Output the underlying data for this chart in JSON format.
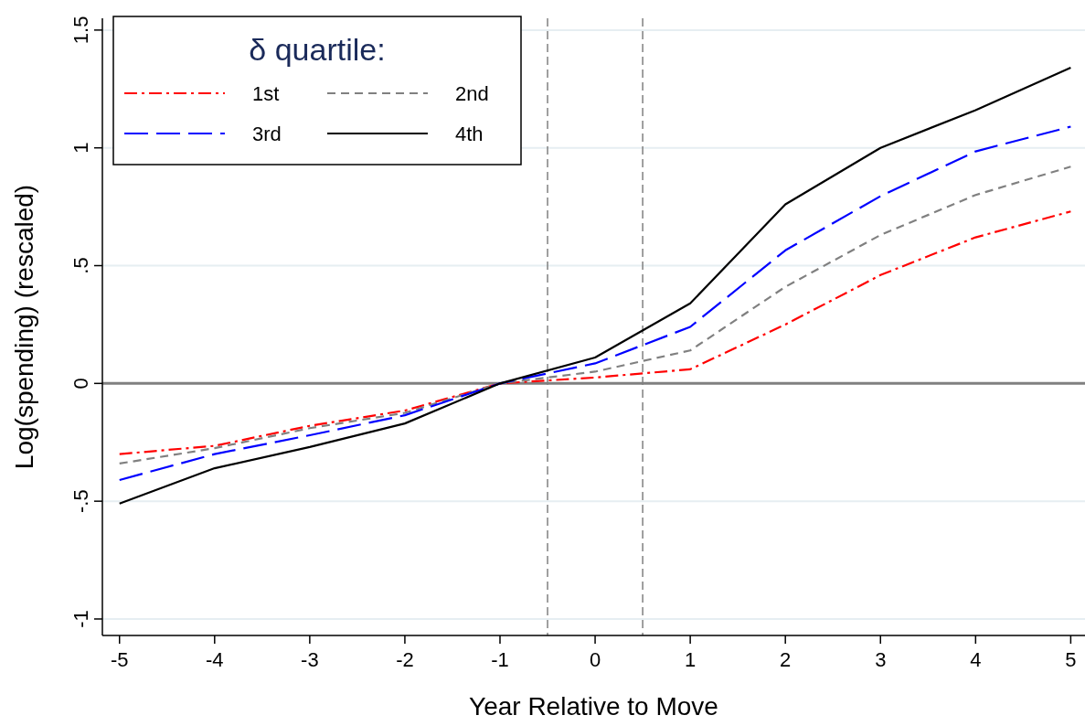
{
  "chart_data": {
    "type": "line",
    "xlabel": "Year Relative to Move",
    "ylabel": "Log(spending) (rescaled)",
    "legend_title": "δ quartile:",
    "x": [
      -5,
      -4,
      -3,
      -2,
      -1,
      0,
      1,
      2,
      3,
      4,
      5
    ],
    "series": [
      {
        "name": "1st",
        "color": "#ff0000",
        "line_style": "dashed",
        "values": [
          -0.3,
          -0.265,
          -0.18,
          -0.115,
          0,
          0.025,
          0.06,
          0.25,
          0.46,
          0.62,
          0.73
        ]
      },
      {
        "name": "2nd",
        "color": "#808080",
        "line_style": "dashed",
        "values": [
          -0.34,
          -0.275,
          -0.19,
          -0.125,
          0,
          0.05,
          0.14,
          0.41,
          0.63,
          0.8,
          0.92
        ]
      },
      {
        "name": "3rd",
        "color": "#0000ff",
        "line_style": "dashed",
        "values": [
          -0.41,
          -0.3,
          -0.22,
          -0.135,
          0,
          0.085,
          0.24,
          0.565,
          0.795,
          0.985,
          1.09
        ]
      },
      {
        "name": "4th",
        "color": "#000000",
        "line_style": "solid",
        "values": [
          -0.51,
          -0.36,
          -0.27,
          -0.17,
          0,
          0.11,
          0.34,
          0.76,
          1.0,
          1.16,
          1.34
        ]
      }
    ],
    "xlim": [
      -5.18,
      5.15
    ],
    "ylim": [
      -1.07,
      1.55
    ],
    "xticks": [
      -5,
      -4,
      -3,
      -2,
      -1,
      0,
      1,
      2,
      3,
      4,
      5
    ],
    "yticks": [
      {
        "value": -1,
        "label": "-1"
      },
      {
        "value": -0.5,
        "label": "-.5"
      },
      0,
      {
        "value": 0.5,
        "label": ".5"
      },
      1,
      1.5
    ],
    "ref_lines": [
      {
        "axis": "y",
        "value": 0,
        "color": "#808080",
        "line_style": "solid"
      },
      {
        "axis": "x",
        "value": -0.5,
        "color": "#808080",
        "line_style": "dashed"
      },
      {
        "axis": "x",
        "value": 0.5,
        "color": "#808080",
        "line_style": "dashed"
      }
    ],
    "grid": "y",
    "legend": "top left",
    "marker": "none"
  }
}
